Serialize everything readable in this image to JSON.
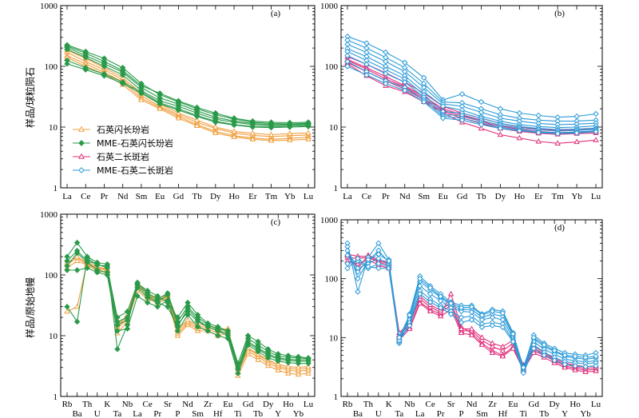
{
  "figure": {
    "y_title_top": "样品/球粒陨石",
    "y_title_bottom": "样品/原始地幔"
  },
  "legend": [
    {
      "label": "石英闪长玢岩",
      "marker": "triangle-open",
      "color": "#f0a040"
    },
    {
      "label": "MME-石英闪长玢岩",
      "marker": "diamond-filled",
      "color": "#2a9a4a"
    },
    {
      "label": "石英二长斑岩",
      "marker": "triangle-open",
      "color": "#e0307a"
    },
    {
      "label": "MME-石英二长斑岩",
      "marker": "diamond-open",
      "color": "#2a9ad8"
    }
  ],
  "chart_data": [
    {
      "id": "a",
      "panel_label": "(a)",
      "type": "line",
      "yscale": "log",
      "ylim": [
        1,
        1000
      ],
      "yticks": [
        "1",
        "10",
        "100",
        "1000"
      ],
      "categories": [
        "La",
        "Ce",
        "Pr",
        "Nd",
        "Sm",
        "Eu",
        "Gd",
        "Tb",
        "Dy",
        "Ho",
        "Er",
        "Tm",
        "Yb",
        "Lu"
      ],
      "series": [
        {
          "group": 0,
          "values": [
            170,
            120,
            88,
            60,
            33,
            22,
            16,
            12,
            9.5,
            8.0,
            7.3,
            7.0,
            7.2,
            7.4
          ]
        },
        {
          "group": 0,
          "values": [
            150,
            110,
            80,
            55,
            30,
            21,
            15,
            11,
            8.5,
            7.2,
            6.6,
            6.3,
            6.5,
            6.8
          ]
        },
        {
          "group": 0,
          "values": [
            185,
            135,
            95,
            65,
            36,
            24,
            17,
            13,
            10,
            8.5,
            7.9,
            7.5,
            7.8,
            8.0
          ]
        },
        {
          "group": 0,
          "values": [
            140,
            100,
            75,
            50,
            28,
            20,
            14,
            10.5,
            8.0,
            6.9,
            6.3,
            6.0,
            6.1,
            6.3
          ]
        },
        {
          "group": 1,
          "values": [
            225,
            175,
            135,
            95,
            52,
            34,
            26,
            20,
            16,
            13.5,
            12,
            11.5,
            11.3,
            11.6
          ]
        },
        {
          "group": 1,
          "values": [
            205,
            150,
            110,
            80,
            45,
            30,
            24,
            18.5,
            14.5,
            12.5,
            11.5,
            11,
            11,
            11.3
          ]
        },
        {
          "group": 1,
          "values": [
            190,
            140,
            100,
            72,
            40,
            27,
            22,
            17,
            13.5,
            12,
            11,
            10.5,
            10.8,
            11
          ]
        },
        {
          "group": 1,
          "values": [
            125,
            95,
            75,
            55,
            38,
            25,
            20,
            15.5,
            12.5,
            11,
            10.2,
            10,
            10.3,
            10.6
          ]
        },
        {
          "group": 1,
          "values": [
            215,
            165,
            120,
            85,
            48,
            36,
            27,
            21,
            17,
            14,
            12.5,
            12,
            11.8,
            12
          ]
        },
        {
          "group": 1,
          "values": [
            110,
            88,
            70,
            52,
            36,
            24,
            19,
            15,
            12,
            10.8,
            10,
            9.8,
            10,
            10.2
          ]
        }
      ]
    },
    {
      "id": "b",
      "panel_label": "(b)",
      "type": "line",
      "yscale": "log",
      "ylim": [
        1,
        1000
      ],
      "yticks": [
        "1",
        "10",
        "100",
        "1000"
      ],
      "categories": [
        "La",
        "Ce",
        "Pr",
        "Nd",
        "Sm",
        "Eu",
        "Gd",
        "Tb",
        "Dy",
        "Ho",
        "Er",
        "Tm",
        "Yb",
        "Lu"
      ],
      "series": [
        {
          "group": 2,
          "values": [
            130,
            95,
            68,
            48,
            32,
            20,
            16,
            13,
            10.5,
            9.2,
            8.5,
            8.1,
            8.3,
            8.6
          ]
        },
        {
          "group": 2,
          "values": [
            115,
            82,
            58,
            42,
            28,
            18,
            14,
            11.5,
            9.5,
            8.5,
            7.9,
            7.6,
            7.8,
            8.0
          ]
        },
        {
          "group": 2,
          "values": [
            145,
            108,
            78,
            55,
            36,
            22,
            17,
            14,
            11.5,
            10,
            9.3,
            8.8,
            9.0,
            9.3
          ]
        },
        {
          "group": 2,
          "values": [
            110,
            70,
            48,
            38,
            26,
            17,
            12,
            9.5,
            7.5,
            6.6,
            5.8,
            5.4,
            5.7,
            6.1
          ]
        },
        {
          "group": 2,
          "values": [
            125,
            90,
            62,
            46,
            30,
            19,
            15,
            12.5,
            10,
            9.0,
            8.3,
            8.0,
            8.2,
            8.5
          ]
        },
        {
          "group": 3,
          "values": [
            310,
            240,
            170,
            115,
            65,
            28,
            35,
            26,
            20,
            17,
            15.5,
            14.5,
            15,
            16.5
          ]
        },
        {
          "group": 3,
          "values": [
            270,
            200,
            140,
            95,
            52,
            26,
            25,
            20,
            16,
            14,
            13,
            12.5,
            12.6,
            13
          ]
        },
        {
          "group": 3,
          "values": [
            230,
            170,
            120,
            82,
            45,
            24,
            22,
            17.5,
            14,
            12.5,
            11.5,
            11,
            11.2,
            11.6
          ]
        },
        {
          "group": 3,
          "values": [
            195,
            145,
            100,
            70,
            38,
            22,
            19,
            15,
            12.5,
            11,
            10.2,
            9.8,
            10,
            10.5
          ]
        },
        {
          "group": 3,
          "values": [
            175,
            125,
            88,
            62,
            34,
            18,
            17,
            14,
            11.5,
            10.2,
            9.5,
            9.1,
            9.3,
            9.6
          ]
        },
        {
          "group": 3,
          "values": [
            150,
            108,
            76,
            55,
            31,
            16,
            15.5,
            12.8,
            10.8,
            9.6,
            9.0,
            8.6,
            8.8,
            9.2
          ]
        },
        {
          "group": 3,
          "values": [
            120,
            82,
            58,
            45,
            28,
            15,
            14,
            11.8,
            10,
            9.0,
            8.4,
            8.1,
            8.3,
            8.7
          ]
        },
        {
          "group": 3,
          "values": [
            100,
            72,
            52,
            40,
            26,
            14,
            13,
            11,
            9.5,
            8.7,
            8.1,
            7.8,
            8.0,
            8.4
          ]
        }
      ]
    },
    {
      "id": "c",
      "panel_label": "(c)",
      "type": "line",
      "yscale": "log",
      "ylim": [
        1,
        1000
      ],
      "yticks": [
        "1",
        "10",
        "100",
        "1000"
      ],
      "categories": [
        "Rb",
        "Ba",
        "Th",
        "U",
        "K",
        "Ta",
        "Nb",
        "La",
        "Ce",
        "Pr",
        "Sr",
        "P",
        "Nd",
        "Sm",
        "Zr",
        "Hf",
        "Eu",
        "Ti",
        "Gd",
        "Tb",
        "Dy",
        "Y",
        "Ho",
        "Yb",
        "Lu"
      ],
      "series": [
        {
          "group": 0,
          "values": [
            130,
            170,
            145,
            115,
            110,
            11,
            17,
            55,
            40,
            35,
            40,
            10,
            15,
            12,
            12,
            10,
            11,
            2.2,
            5,
            4,
            3.2,
            2.7,
            2.4,
            2.3,
            2.4
          ]
        },
        {
          "group": 0,
          "values": [
            150,
            190,
            150,
            125,
            120,
            13,
            19,
            60,
            44,
            37,
            43,
            11,
            16,
            13,
            13,
            11,
            12,
            2.5,
            5.5,
            4.5,
            3.5,
            3.0,
            2.7,
            2.6,
            2.7
          ]
        },
        {
          "group": 0,
          "values": [
            25,
            30,
            165,
            135,
            125,
            14,
            21,
            65,
            47,
            39,
            45,
            12,
            17,
            14,
            14,
            12,
            13,
            2.8,
            6,
            4.8,
            3.8,
            3.2,
            2.9,
            2.8,
            2.9
          ]
        },
        {
          "group": 0,
          "values": [
            160,
            200,
            155,
            130,
            125,
            15,
            22,
            70,
            50,
            41,
            47,
            13,
            18,
            15,
            15,
            12.5,
            13,
            3.0,
            6.3,
            5.0,
            4.0,
            3.4,
            3.1,
            3.0,
            3.1
          ]
        },
        {
          "group": 1,
          "values": [
            200,
            340,
            200,
            160,
            150,
            6,
            15,
            75,
            50,
            40,
            50,
            17,
            30,
            20,
            15,
            13,
            12,
            3,
            9,
            7,
            5.5,
            4.6,
            4.4,
            4.3,
            4.2
          ]
        },
        {
          "group": 1,
          "values": [
            30,
            17,
            190,
            145,
            140,
            17,
            20,
            68,
            46,
            36,
            47,
            15,
            25,
            17,
            14,
            12,
            11,
            2.8,
            8,
            6.3,
            5.0,
            4.3,
            4.1,
            4.0,
            4.0
          ]
        },
        {
          "group": 1,
          "values": [
            170,
            250,
            170,
            150,
            130,
            20,
            25,
            72,
            55,
            45,
            35,
            20,
            35,
            22,
            16,
            14,
            12,
            3.5,
            10,
            8,
            6,
            5,
            4.7,
            4.5,
            4.3
          ]
        },
        {
          "group": 1,
          "values": [
            120,
            120,
            130,
            110,
            100,
            12,
            13,
            45,
            35,
            30,
            38,
            12,
            22,
            14,
            12,
            10,
            9,
            2.4,
            7,
            5.5,
            4.3,
            3.8,
            3.6,
            3.5,
            3.5
          ]
        },
        {
          "group": 1,
          "values": [
            140,
            230,
            160,
            120,
            110,
            15,
            18,
            62,
            42,
            35,
            30,
            14,
            28,
            18,
            14,
            12,
            10,
            2.8,
            7.5,
            6,
            4.7,
            4.1,
            3.9,
            3.8,
            3.8
          ]
        }
      ]
    },
    {
      "id": "d",
      "panel_label": "(d)",
      "type": "line",
      "yscale": "log",
      "ylim": [
        1,
        1000
      ],
      "yticks": [
        "1",
        "10",
        "100",
        "1000"
      ],
      "categories": [
        "Rb",
        "Ba",
        "Th",
        "U",
        "K",
        "Ta",
        "Nb",
        "La",
        "Ce",
        "Pr",
        "Sr",
        "P",
        "Nd",
        "Sm",
        "Zr",
        "Hf",
        "Eu",
        "Ti",
        "Gd",
        "Tb",
        "Dy",
        "Y",
        "Ho",
        "Yb",
        "Lu"
      ],
      "series": [
        {
          "group": 2,
          "values": [
            230,
            220,
            230,
            190,
            170,
            10,
            15,
            40,
            30,
            25,
            55,
            15,
            12,
            8,
            6,
            5,
            7,
            3,
            6,
            5,
            4,
            3.3,
            3.0,
            2.8,
            2.9
          ]
        },
        {
          "group": 2,
          "values": [
            250,
            150,
            250,
            210,
            190,
            11,
            17,
            45,
            33,
            27,
            35,
            13,
            13,
            9,
            7,
            6,
            8,
            3.2,
            6.5,
            5.3,
            4.2,
            3.5,
            3.2,
            3.0,
            3.1
          ]
        },
        {
          "group": 2,
          "values": [
            200,
            180,
            210,
            170,
            150,
            9,
            14,
            38,
            28,
            23,
            30,
            12,
            11,
            7.5,
            5.5,
            4.8,
            6.5,
            2.8,
            5.5,
            4.6,
            3.7,
            3.1,
            2.8,
            2.6,
            2.7
          ]
        },
        {
          "group": 2,
          "values": [
            260,
            240,
            240,
            200,
            180,
            12,
            18,
            50,
            36,
            29,
            40,
            14,
            14,
            10,
            8,
            7,
            9,
            3.4,
            7,
            5.6,
            4.4,
            3.7,
            3.4,
            3.2,
            3.3
          ]
        },
        {
          "group": 3,
          "values": [
            400,
            60,
            230,
            400,
            210,
            8,
            25,
            110,
            75,
            55,
            40,
            35,
            35,
            25,
            30,
            28,
            12,
            3,
            11,
            8,
            6.5,
            5.5,
            5.2,
            5.0,
            5.5
          ]
        },
        {
          "group": 3,
          "values": [
            350,
            100,
            200,
            300,
            190,
            9,
            22,
            90,
            65,
            48,
            35,
            30,
            30,
            22,
            25,
            23,
            11,
            3.2,
            9.5,
            7,
            5.8,
            4.8,
            4.5,
            4.3,
            4.5
          ]
        },
        {
          "group": 3,
          "values": [
            300,
            150,
            180,
            220,
            175,
            10,
            20,
            75,
            55,
            42,
            32,
            28,
            27,
            20,
            22,
            20,
            10,
            3.0,
            8.5,
            6.3,
            5.2,
            4.3,
            4.0,
            3.9,
            4.0
          ]
        },
        {
          "group": 3,
          "values": [
            180,
            200,
            150,
            180,
            160,
            8.5,
            18,
            62,
            45,
            35,
            28,
            22,
            23,
            17,
            18,
            17,
            9,
            2.7,
            7.5,
            5.6,
            4.6,
            3.9,
            3.7,
            3.6,
            3.7
          ]
        },
        {
          "group": 3,
          "values": [
            150,
            220,
            160,
            150,
            150,
            9,
            16,
            55,
            40,
            32,
            25,
            18,
            20,
            15,
            16,
            15,
            8.5,
            2.5,
            6.5,
            5.0,
            4.1,
            3.5,
            3.3,
            3.2,
            3.3
          ]
        },
        {
          "group": 3,
          "values": [
            250,
            130,
            210,
            260,
            200,
            10,
            24,
            100,
            70,
            50,
            38,
            32,
            33,
            24,
            28,
            26,
            11.5,
            3.1,
            10,
            7.5,
            6.0,
            5.0,
            4.8,
            4.6,
            4.8
          ]
        }
      ]
    }
  ]
}
